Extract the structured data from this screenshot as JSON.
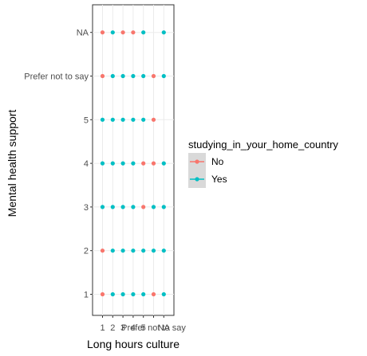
{
  "chart_data": {
    "type": "scatter",
    "xlabel": "Long hours culture",
    "ylabel": "Mental health support",
    "x_categories": [
      "1",
      "2",
      "3",
      "4",
      "5",
      "Prefer not to say",
      "NA"
    ],
    "y_categories": [
      "1",
      "2",
      "3",
      "4",
      "5",
      "Prefer not to say",
      "NA"
    ],
    "legend": {
      "title": "studying_in_your_home_country",
      "position": "right",
      "entries": [
        {
          "name": "No",
          "color": "#F8766D"
        },
        {
          "name": "Yes",
          "color": "#00BFC4"
        }
      ]
    },
    "grid": true,
    "points": [
      {
        "x": "1",
        "y": "NA",
        "group": "No"
      },
      {
        "x": "2",
        "y": "NA",
        "group": "Yes"
      },
      {
        "x": "3",
        "y": "NA",
        "group": "No"
      },
      {
        "x": "4",
        "y": "NA",
        "group": "No"
      },
      {
        "x": "5",
        "y": "NA",
        "group": "Yes"
      },
      {
        "x": "NA",
        "y": "NA",
        "group": "Yes"
      },
      {
        "x": "1",
        "y": "Prefer not to say",
        "group": "No"
      },
      {
        "x": "2",
        "y": "Prefer not to say",
        "group": "Yes"
      },
      {
        "x": "3",
        "y": "Prefer not to say",
        "group": "Yes"
      },
      {
        "x": "4",
        "y": "Prefer not to say",
        "group": "Yes"
      },
      {
        "x": "5",
        "y": "Prefer not to say",
        "group": "Yes"
      },
      {
        "x": "Prefer not to say",
        "y": "Prefer not to say",
        "group": "No"
      },
      {
        "x": "NA",
        "y": "Prefer not to say",
        "group": "Yes"
      },
      {
        "x": "1",
        "y": "5",
        "group": "Yes"
      },
      {
        "x": "2",
        "y": "5",
        "group": "Yes"
      },
      {
        "x": "3",
        "y": "5",
        "group": "Yes"
      },
      {
        "x": "4",
        "y": "5",
        "group": "Yes"
      },
      {
        "x": "5",
        "y": "5",
        "group": "Yes"
      },
      {
        "x": "Prefer not to say",
        "y": "5",
        "group": "No"
      },
      {
        "x": "1",
        "y": "4",
        "group": "Yes"
      },
      {
        "x": "2",
        "y": "4",
        "group": "Yes"
      },
      {
        "x": "3",
        "y": "4",
        "group": "Yes"
      },
      {
        "x": "4",
        "y": "4",
        "group": "Yes"
      },
      {
        "x": "5",
        "y": "4",
        "group": "No"
      },
      {
        "x": "Prefer not to say",
        "y": "4",
        "group": "No"
      },
      {
        "x": "NA",
        "y": "4",
        "group": "Yes"
      },
      {
        "x": "1",
        "y": "3",
        "group": "Yes"
      },
      {
        "x": "2",
        "y": "3",
        "group": "Yes"
      },
      {
        "x": "3",
        "y": "3",
        "group": "Yes"
      },
      {
        "x": "4",
        "y": "3",
        "group": "Yes"
      },
      {
        "x": "5",
        "y": "3",
        "group": "No"
      },
      {
        "x": "Prefer not to say",
        "y": "3",
        "group": "Yes"
      },
      {
        "x": "NA",
        "y": "3",
        "group": "Yes"
      },
      {
        "x": "1",
        "y": "2",
        "group": "No"
      },
      {
        "x": "2",
        "y": "2",
        "group": "Yes"
      },
      {
        "x": "3",
        "y": "2",
        "group": "Yes"
      },
      {
        "x": "4",
        "y": "2",
        "group": "Yes"
      },
      {
        "x": "5",
        "y": "2",
        "group": "Yes"
      },
      {
        "x": "Prefer not to say",
        "y": "2",
        "group": "Yes"
      },
      {
        "x": "NA",
        "y": "2",
        "group": "Yes"
      },
      {
        "x": "1",
        "y": "1",
        "group": "No"
      },
      {
        "x": "2",
        "y": "1",
        "group": "Yes"
      },
      {
        "x": "3",
        "y": "1",
        "group": "Yes"
      },
      {
        "x": "4",
        "y": "1",
        "group": "Yes"
      },
      {
        "x": "5",
        "y": "1",
        "group": "Yes"
      },
      {
        "x": "Prefer not to say",
        "y": "1",
        "group": "No"
      },
      {
        "x": "NA",
        "y": "1",
        "group": "Yes"
      }
    ]
  }
}
